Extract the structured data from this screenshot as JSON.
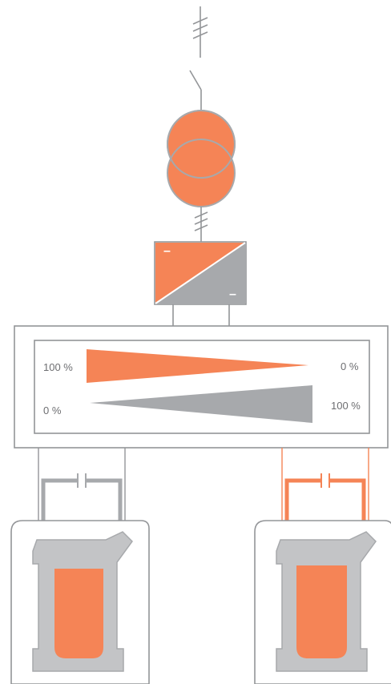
{
  "colors": {
    "orange": "#f58456",
    "gray": "#a7a9ac",
    "gray_dark": "#8c8e91",
    "line": "#939598",
    "text": "#6d6e71"
  },
  "icons": {
    "transformer": "transformer-icon",
    "converter": "ac-dc-converter-icon",
    "switch": "disconnect-switch-icon",
    "furnace": "induction-furnace-icon",
    "capacitor": "capacitor-icon"
  },
  "power_split": {
    "top_left": "100 %",
    "top_right": "0 %",
    "bottom_left": "0 %",
    "bottom_right": "100 %"
  },
  "converter": {
    "dc_minus_top": "–",
    "dc_minus_bottom": "–"
  }
}
